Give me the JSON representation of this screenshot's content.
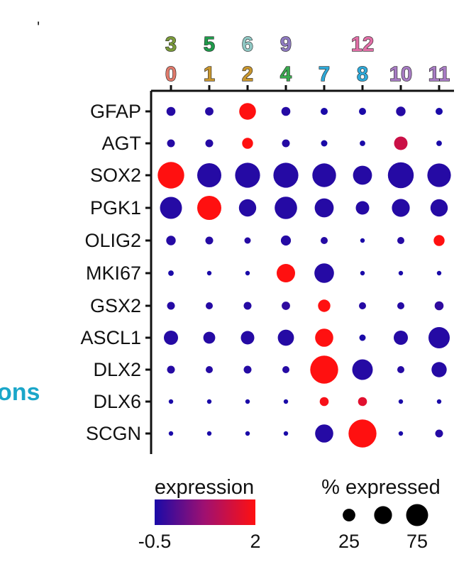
{
  "chart_data": {
    "type": "dotplot",
    "genes": [
      "GFAP",
      "AGT",
      "SOX2",
      "PGK1",
      "OLIG2",
      "MKI67",
      "GSX2",
      "ASCL1",
      "DLX2",
      "DLX6",
      "SCGN"
    ],
    "clusters": [
      "0",
      "1",
      "2",
      "4",
      "7",
      "8",
      "10",
      "11"
    ],
    "cluster_colors": [
      "#e07a6b",
      "#c8962e",
      "#c8962e",
      "#3aa84f",
      "#2fa9d8",
      "#2fa9d8",
      "#a77bc3",
      "#a77bc3"
    ],
    "top_labels": [
      {
        "text": "3",
        "over": "0",
        "color": "#7a9a3a"
      },
      {
        "text": "5",
        "over": "1",
        "color": "#1f9a4b"
      },
      {
        "text": "6",
        "over": "2",
        "color": "#8fc7c3"
      },
      {
        "text": "9",
        "over": "4",
        "color": "#8e7ac0"
      },
      {
        "text": "12",
        "over": "8",
        "color": "#e06fa6"
      }
    ],
    "pct_expressed": [
      [
        8,
        7,
        28,
        8,
        5,
        5,
        9,
        5
      ],
      [
        6,
        6,
        12,
        6,
        4,
        3,
        18,
        3
      ],
      [
        70,
        58,
        62,
        62,
        56,
        36,
        66,
        55
      ],
      [
        48,
        58,
        30,
        50,
        36,
        18,
        32,
        30
      ],
      [
        9,
        6,
        4,
        10,
        5,
        2,
        5,
        12
      ],
      [
        3,
        2,
        2,
        34,
        38,
        2,
        2,
        2
      ],
      [
        6,
        5,
        6,
        7,
        15,
        5,
        5,
        8
      ],
      [
        20,
        14,
        18,
        26,
        33,
        4,
        20,
        45
      ],
      [
        6,
        5,
        6,
        5,
        78,
        42,
        5,
        23
      ],
      [
        2,
        2,
        2,
        2,
        8,
        8,
        2,
        2
      ],
      [
        2,
        2,
        2,
        2,
        33,
        78,
        2,
        6
      ]
    ],
    "expression": [
      [
        -0.4,
        -0.4,
        2,
        -0.4,
        -0.5,
        -0.5,
        -0.4,
        -0.5
      ],
      [
        -0.4,
        -0.4,
        2,
        -0.4,
        -0.5,
        -0.5,
        1.3,
        -0.5
      ],
      [
        2,
        -0.4,
        -0.4,
        -0.4,
        -0.4,
        -0.4,
        -0.4,
        -0.4
      ],
      [
        -0.4,
        2,
        -0.4,
        -0.4,
        -0.4,
        -0.4,
        -0.4,
        -0.4
      ],
      [
        -0.4,
        -0.4,
        -0.4,
        -0.4,
        -0.4,
        -0.5,
        -0.4,
        2
      ],
      [
        -0.5,
        -0.5,
        -0.5,
        2,
        -0.4,
        -0.5,
        -0.5,
        -0.5
      ],
      [
        -0.4,
        -0.4,
        -0.4,
        -0.3,
        2,
        -0.4,
        -0.4,
        -0.3
      ],
      [
        -0.4,
        -0.4,
        -0.4,
        -0.4,
        2,
        -0.5,
        -0.4,
        -0.4
      ],
      [
        -0.4,
        -0.4,
        -0.4,
        -0.4,
        2,
        -0.4,
        -0.4,
        -0.4
      ],
      [
        -0.5,
        -0.5,
        -0.5,
        -0.5,
        1.9,
        1.6,
        -0.5,
        -0.5
      ],
      [
        -0.5,
        -0.5,
        -0.5,
        -0.5,
        -0.4,
        2,
        -0.5,
        -0.4
      ]
    ],
    "color_legend": {
      "title": "expression",
      "min_label": "-0.5",
      "max_label": "2",
      "min": -0.5,
      "max": 2,
      "colors": [
        "#1a0aa8",
        "#a01070",
        "#ff1010"
      ]
    },
    "size_legend": {
      "title": "% expressed",
      "values": [
        25,
        50,
        75
      ],
      "labels": [
        "25",
        "",
        "75"
      ]
    },
    "side_text": "ons",
    "corner_mark": "'"
  }
}
